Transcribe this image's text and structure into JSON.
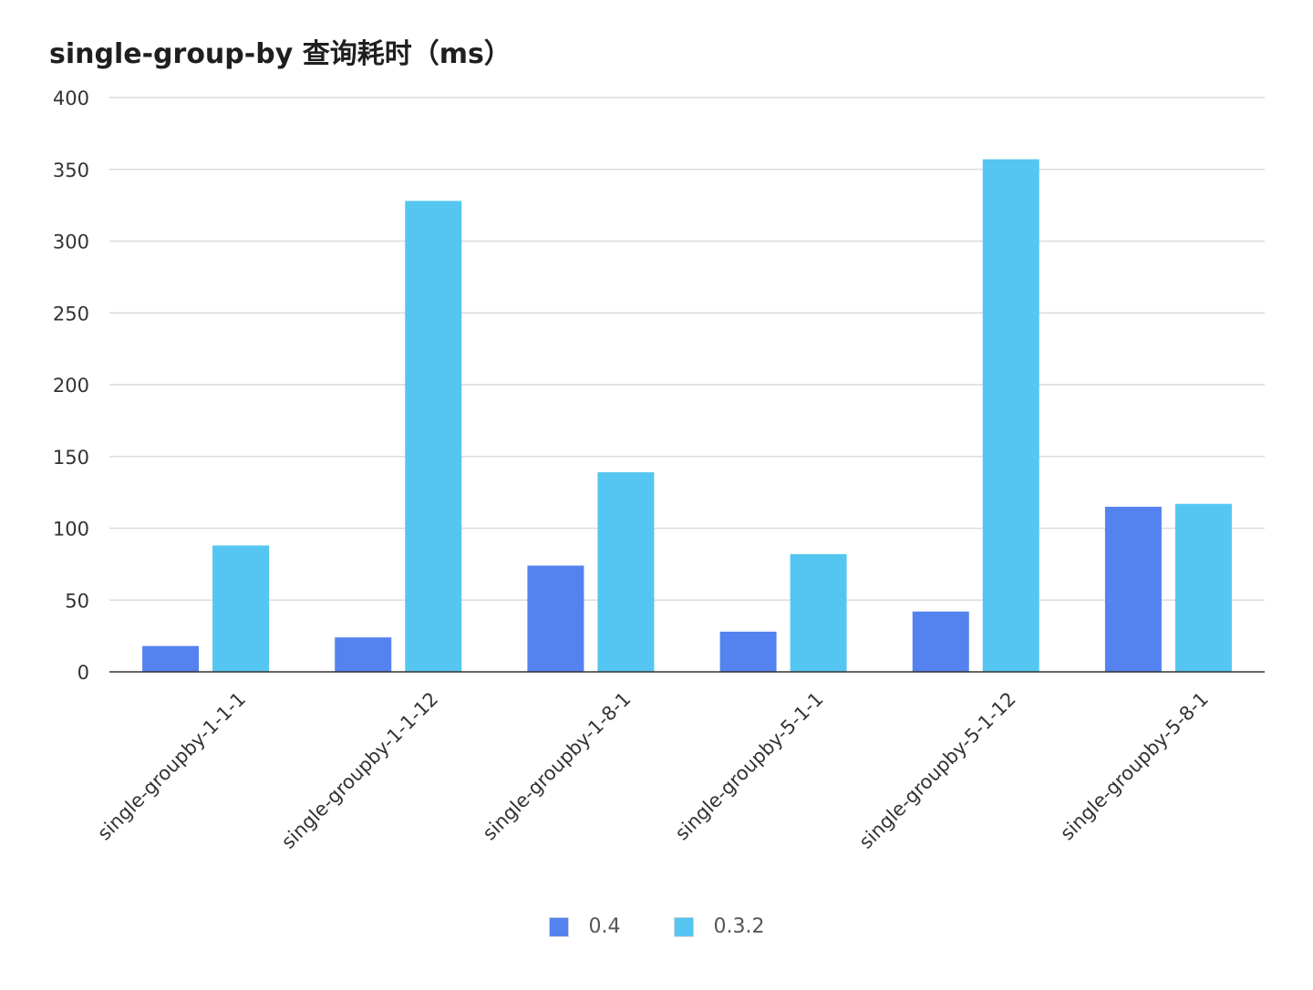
{
  "chart_data": {
    "type": "bar",
    "title": "single-group-by 查询耗时（ms）",
    "categories": [
      "single-groupby-1-1-1",
      "single-groupby-1-1-12",
      "single-groupby-1-8-1",
      "single-groupby-5-1-1",
      "single-groupby-5-1-12",
      "single-groupby-5-8-1"
    ],
    "series": [
      {
        "name": "0.4",
        "color": "#5483ef",
        "values": [
          18,
          24,
          74,
          28,
          42,
          115
        ]
      },
      {
        "name": "0.3.2",
        "color": "#55c6f1",
        "values": [
          88,
          328,
          139,
          82,
          357,
          117
        ]
      }
    ],
    "ylim": [
      0,
      400
    ],
    "yticks": [
      0,
      50,
      100,
      150,
      200,
      250,
      300,
      350,
      400
    ],
    "xlabel": "",
    "ylabel": "",
    "grid": true,
    "legend_position": "bottom-center"
  }
}
